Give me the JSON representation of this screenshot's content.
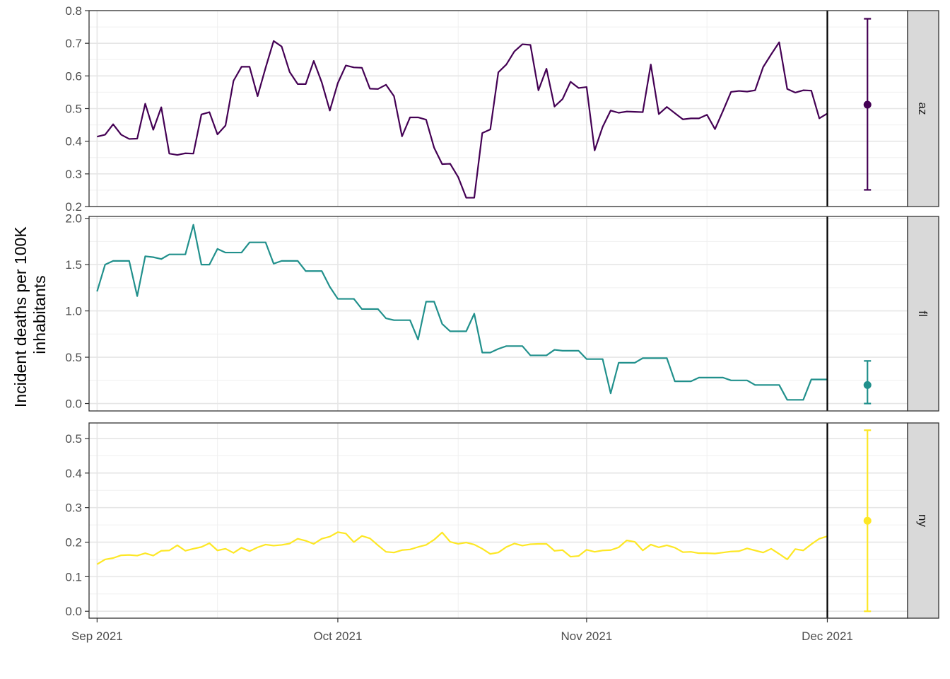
{
  "chart_data": {
    "type": "line",
    "ylabel_lines": [
      "Incident deaths per 100K",
      "inhabitants"
    ],
    "xlabel": "",
    "x_start": "2021-09-01",
    "x_end": "2021-12-01",
    "xlim": [
      "2021-08-31",
      "2021-12-11"
    ],
    "x_ticks": [
      {
        "date": "2021-09-01",
        "label": "Sep 2021"
      },
      {
        "date": "2021-10-01",
        "label": "Oct 2021"
      },
      {
        "date": "2021-11-01",
        "label": "Nov 2021"
      },
      {
        "date": "2021-12-01",
        "label": "Dec 2021"
      }
    ],
    "x_minor_ticks": [
      "2021-09-16",
      "2021-10-16",
      "2021-11-16"
    ],
    "forecast_date": "2021-12-01",
    "grid": true,
    "legend": "none",
    "facets": [
      {
        "label": "az",
        "color": "#440154",
        "ylim": [
          0.2,
          0.8
        ],
        "y_ticks": [
          0.2,
          0.3,
          0.4,
          0.5,
          0.6,
          0.7,
          0.8
        ],
        "y_tick_labels": [
          "0.2",
          "0.3",
          "0.4",
          "0.5",
          "0.6",
          "0.7",
          "0.8"
        ],
        "values": [
          0.414,
          0.42,
          0.452,
          0.42,
          0.407,
          0.408,
          0.515,
          0.435,
          0.504,
          0.362,
          0.358,
          0.363,
          0.362,
          0.482,
          0.489,
          0.421,
          0.448,
          0.585,
          0.628,
          0.628,
          0.538,
          0.625,
          0.707,
          0.69,
          0.612,
          0.575,
          0.575,
          0.646,
          0.58,
          0.494,
          0.578,
          0.632,
          0.626,
          0.625,
          0.561,
          0.56,
          0.573,
          0.538,
          0.415,
          0.473,
          0.473,
          0.466,
          0.38,
          0.33,
          0.331,
          0.29,
          0.227,
          0.227,
          0.425,
          0.436,
          0.611,
          0.635,
          0.675,
          0.697,
          0.695,
          0.556,
          0.622,
          0.506,
          0.529,
          0.582,
          0.563,
          0.566,
          0.372,
          0.444,
          0.494,
          0.487,
          0.491,
          0.49,
          0.489,
          0.635,
          0.483,
          0.505,
          0.486,
          0.467,
          0.47,
          0.47,
          0.481,
          0.437,
          0.493,
          0.551,
          0.554,
          0.552,
          0.556,
          0.627,
          0.666,
          0.703,
          0.56,
          0.549,
          0.556,
          0.555,
          0.47,
          0.485
        ],
        "forecast": {
          "date": "2021-12-06",
          "median": 0.512,
          "lower": 0.251,
          "upper": 0.775
        }
      },
      {
        "label": "fl",
        "color": "#21908c",
        "ylim": [
          -0.08,
          2.02
        ],
        "y_ticks": [
          0.0,
          0.5,
          1.0,
          1.5,
          2.0
        ],
        "y_tick_labels": [
          "0.0",
          "0.5",
          "1.0",
          "1.5",
          "2.0"
        ],
        "values": [
          1.21,
          1.5,
          1.54,
          1.54,
          1.54,
          1.16,
          1.59,
          1.58,
          1.56,
          1.61,
          1.61,
          1.61,
          1.93,
          1.5,
          1.5,
          1.67,
          1.63,
          1.63,
          1.63,
          1.74,
          1.74,
          1.74,
          1.51,
          1.54,
          1.54,
          1.54,
          1.43,
          1.43,
          1.43,
          1.26,
          1.13,
          1.13,
          1.13,
          1.02,
          1.02,
          1.02,
          0.92,
          0.9,
          0.9,
          0.9,
          0.69,
          1.1,
          1.1,
          0.86,
          0.78,
          0.78,
          0.78,
          0.97,
          0.55,
          0.55,
          0.59,
          0.62,
          0.62,
          0.62,
          0.52,
          0.52,
          0.52,
          0.58,
          0.57,
          0.57,
          0.57,
          0.48,
          0.48,
          0.48,
          0.11,
          0.44,
          0.44,
          0.44,
          0.49,
          0.49,
          0.49,
          0.49,
          0.24,
          0.24,
          0.24,
          0.28,
          0.28,
          0.28,
          0.28,
          0.25,
          0.25,
          0.25,
          0.2,
          0.2,
          0.2,
          0.2,
          0.04,
          0.04,
          0.04,
          0.26,
          0.26,
          0.26
        ],
        "forecast": {
          "date": "2021-12-06",
          "median": 0.2,
          "lower": 0.0,
          "upper": 0.46
        }
      },
      {
        "label": "ny",
        "color": "#fde725",
        "ylim": [
          -0.02,
          0.545
        ],
        "y_ticks": [
          0.0,
          0.1,
          0.2,
          0.3,
          0.4,
          0.5
        ],
        "y_tick_labels": [
          "0.0",
          "0.1",
          "0.2",
          "0.3",
          "0.4",
          "0.5"
        ],
        "values": [
          0.136,
          0.15,
          0.154,
          0.162,
          0.163,
          0.161,
          0.168,
          0.161,
          0.175,
          0.176,
          0.191,
          0.175,
          0.181,
          0.186,
          0.197,
          0.176,
          0.181,
          0.169,
          0.184,
          0.174,
          0.185,
          0.193,
          0.19,
          0.192,
          0.196,
          0.21,
          0.204,
          0.195,
          0.21,
          0.216,
          0.229,
          0.225,
          0.2,
          0.218,
          0.211,
          0.191,
          0.172,
          0.17,
          0.177,
          0.179,
          0.186,
          0.192,
          0.207,
          0.228,
          0.201,
          0.195,
          0.199,
          0.193,
          0.181,
          0.166,
          0.17,
          0.186,
          0.196,
          0.19,
          0.194,
          0.195,
          0.195,
          0.175,
          0.177,
          0.158,
          0.16,
          0.178,
          0.172,
          0.176,
          0.177,
          0.185,
          0.205,
          0.201,
          0.176,
          0.193,
          0.185,
          0.191,
          0.184,
          0.171,
          0.172,
          0.168,
          0.168,
          0.167,
          0.17,
          0.173,
          0.174,
          0.182,
          0.176,
          0.17,
          0.181,
          0.166,
          0.15,
          0.18,
          0.176,
          0.194,
          0.21,
          0.217
        ],
        "forecast": {
          "date": "2021-12-06",
          "median": 0.262,
          "lower": 0.0,
          "upper": 0.524
        }
      }
    ]
  }
}
